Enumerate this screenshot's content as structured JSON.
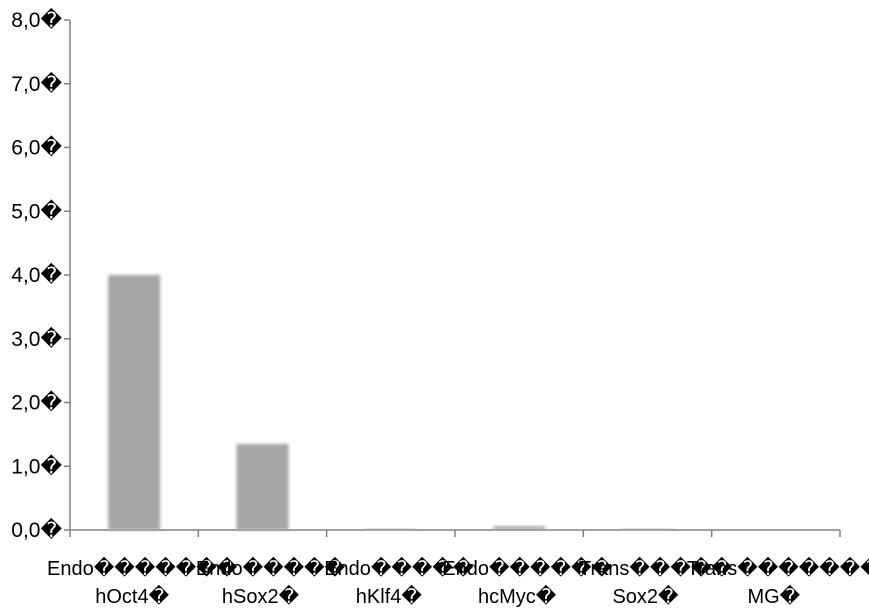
{
  "chart_data": {
    "type": "bar",
    "title": "",
    "xlabel": "",
    "ylabel": "",
    "ylim": [
      0,
      8
    ],
    "y_ticks": [
      "0,0�",
      "1,0�",
      "2,0�",
      "3,0�",
      "4,0�",
      "5,0�",
      "6,0�",
      "7,0�",
      "8,0�"
    ],
    "categories": [
      [
        "Endo�������",
        "hOct4�"
      ],
      [
        "Endo�����",
        "hSox2�"
      ],
      [
        "Endo�����",
        "hKlf4�"
      ],
      [
        "Endo������",
        "hcMyc�"
      ],
      [
        "Trans�����",
        "Sox2�"
      ],
      [
        "Trans�������",
        "MG�"
      ]
    ],
    "values": [
      4.0,
      1.35,
      0.02,
      0.06,
      0.01,
      0.0
    ],
    "grid": false,
    "legend": "none",
    "colors": {
      "bar": "#a6a6a6",
      "axis": "#808080",
      "text": "#000000"
    }
  }
}
